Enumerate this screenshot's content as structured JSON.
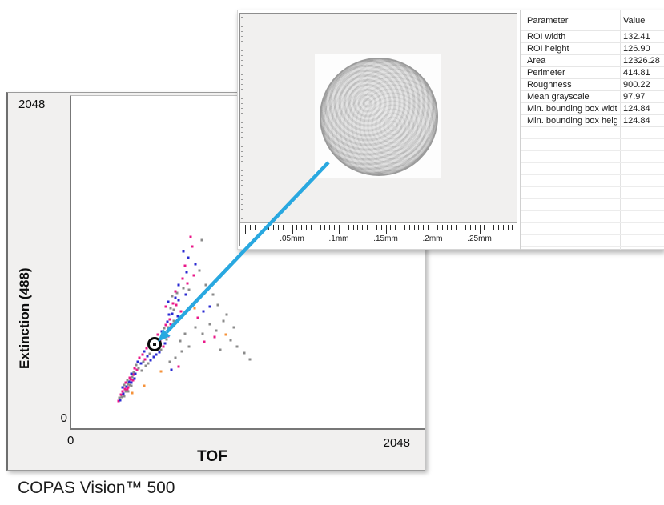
{
  "caption": "COPAS Vision™ 500",
  "colors": {
    "arrow": "#29a8e0",
    "panel_bg": "#f1f0ef",
    "selection_ring": "#0a0a0a",
    "point_pink": "#ea1889",
    "point_blue": "#2a2ad2",
    "point_gray": "#8b8b8b",
    "point_orange": "#f5923a"
  },
  "scatter": {
    "y_max_label": "2048",
    "y_min_label": "0",
    "x_min_label": "0",
    "x_max_label": "2048",
    "x_title": "TOF",
    "y_title": "Extinction (488)"
  },
  "image_viewer": {
    "ruler_labels": [
      ".05mm",
      ".1mm",
      ".15mm",
      ".2mm",
      ".25mm"
    ]
  },
  "table": {
    "headers": [
      "Parameter",
      "Value"
    ],
    "rows": [
      {
        "param": "ROI width",
        "value": "132.41"
      },
      {
        "param": "ROI height",
        "value": "126.90"
      },
      {
        "param": "Area",
        "value": "12326.28"
      },
      {
        "param": "Perimeter",
        "value": "414.81"
      },
      {
        "param": "Roughness",
        "value": "900.22"
      },
      {
        "param": "Mean grayscale",
        "value": "97.97"
      },
      {
        "param": "Min. bounding box width",
        "value": "124.84"
      },
      {
        "param": "Min. bounding box height",
        "value": "124.84"
      }
    ],
    "empty_row_count": 10
  },
  "chart_data": {
    "type": "scatter",
    "xlabel": "TOF",
    "ylabel": "Extinction (488)",
    "xlim": [
      0,
      2048
    ],
    "ylim": [
      0,
      2048
    ],
    "x_ticks": [
      0,
      2048
    ],
    "y_ticks": [
      0,
      2048
    ],
    "grid": false,
    "legend": false,
    "point_colors": [
      "#ea1889",
      "#2a2ad2",
      "#8b8b8b",
      "#f5923a"
    ],
    "selected_point": {
      "x": 497,
      "y": 518,
      "marker": "black-ring"
    },
    "points": [
      [
        272,
        168,
        0
      ],
      [
        278,
        188,
        2
      ],
      [
        284,
        175,
        1
      ],
      [
        289,
        205,
        0
      ],
      [
        294,
        190,
        2
      ],
      [
        299,
        228,
        0
      ],
      [
        303,
        210,
        1
      ],
      [
        308,
        195,
        2
      ],
      [
        312,
        242,
        0
      ],
      [
        316,
        225,
        2
      ],
      [
        320,
        258,
        1
      ],
      [
        324,
        238,
        0
      ],
      [
        328,
        272,
        2
      ],
      [
        332,
        252,
        0
      ],
      [
        336,
        288,
        1
      ],
      [
        340,
        265,
        2
      ],
      [
        344,
        302,
        0
      ],
      [
        348,
        280,
        1
      ],
      [
        352,
        318,
        2
      ],
      [
        356,
        295,
        0
      ],
      [
        347,
        335,
        1
      ],
      [
        337,
        312,
        0
      ],
      [
        327,
        298,
        2
      ],
      [
        317,
        282,
        0
      ],
      [
        307,
        268,
        2
      ],
      [
        297,
        252,
        1
      ],
      [
        330,
        225,
        2
      ],
      [
        350,
        260,
        2
      ],
      [
        360,
        330,
        0
      ],
      [
        365,
        308,
        1
      ],
      [
        362,
        345,
        2
      ],
      [
        367,
        368,
        0
      ],
      [
        372,
        335,
        1
      ],
      [
        377,
        392,
        2
      ],
      [
        382,
        358,
        0
      ],
      [
        387,
        412,
        1
      ],
      [
        392,
        372,
        2
      ],
      [
        397,
        432,
        0
      ],
      [
        402,
        398,
        1
      ],
      [
        407,
        355,
        2
      ],
      [
        412,
        452,
        0
      ],
      [
        417,
        408,
        2
      ],
      [
        422,
        472,
        1
      ],
      [
        427,
        425,
        0
      ],
      [
        432,
        385,
        2
      ],
      [
        437,
        492,
        0
      ],
      [
        442,
        442,
        1
      ],
      [
        447,
        402,
        2
      ],
      [
        452,
        512,
        0
      ],
      [
        457,
        458,
        2
      ],
      [
        462,
        418,
        1
      ],
      [
        467,
        532,
        0
      ],
      [
        472,
        482,
        2
      ],
      [
        477,
        438,
        1
      ],
      [
        482,
        552,
        0
      ],
      [
        487,
        498,
        2
      ],
      [
        492,
        452,
        1
      ],
      [
        502,
        575,
        0
      ],
      [
        507,
        518,
        2
      ],
      [
        512,
        468,
        1
      ],
      [
        517,
        545,
        0
      ],
      [
        522,
        485,
        2
      ],
      [
        527,
        595,
        1
      ],
      [
        532,
        505,
        0
      ],
      [
        537,
        615,
        2
      ],
      [
        542,
        525,
        1
      ],
      [
        547,
        635,
        0
      ],
      [
        552,
        548,
        2
      ],
      [
        557,
        655,
        1
      ],
      [
        562,
        568,
        0
      ],
      [
        566,
        702,
        1
      ],
      [
        572,
        672,
        0
      ],
      [
        578,
        742,
        2
      ],
      [
        584,
        708,
        1
      ],
      [
        590,
        772,
        0
      ],
      [
        596,
        732,
        2
      ],
      [
        602,
        802,
        1
      ],
      [
        608,
        762,
        0
      ],
      [
        614,
        832,
        2
      ],
      [
        620,
        792,
        1
      ],
      [
        562,
        622,
        2
      ],
      [
        576,
        642,
        0
      ],
      [
        594,
        662,
        2
      ],
      [
        616,
        692,
        1
      ],
      [
        634,
        722,
        0
      ],
      [
        652,
        862,
        2
      ],
      [
        662,
        822,
        1
      ],
      [
        672,
        892,
        0
      ],
      [
        682,
        852,
        2
      ],
      [
        644,
        922,
        0
      ],
      [
        624,
        882,
        1
      ],
      [
        604,
        842,
        0
      ],
      [
        584,
        812,
        2
      ],
      [
        564,
        782,
        1
      ],
      [
        548,
        752,
        0
      ],
      [
        658,
        1002,
        0
      ],
      [
        678,
        1052,
        1
      ],
      [
        700,
        1122,
        0
      ],
      [
        692,
        1180,
        0
      ],
      [
        756,
        1162,
        2
      ],
      [
        722,
        1012,
        1
      ],
      [
        742,
        972,
        2
      ],
      [
        712,
        942,
        0
      ],
      [
        668,
        962,
        1
      ],
      [
        648,
        1092,
        1
      ],
      [
        722,
        622,
        2
      ],
      [
        762,
        582,
        2
      ],
      [
        802,
        642,
        2
      ],
      [
        842,
        602,
        2
      ],
      [
        882,
        662,
        2
      ],
      [
        922,
        542,
        2
      ],
      [
        962,
        502,
        2
      ],
      [
        1002,
        462,
        2
      ],
      [
        1036,
        422,
        2
      ],
      [
        902,
        702,
        2
      ],
      [
        852,
        762,
        2
      ],
      [
        822,
        822,
        2
      ],
      [
        782,
        882,
        2
      ],
      [
        862,
        482,
        2
      ],
      [
        942,
        622,
        2
      ],
      [
        764,
        722,
        1
      ],
      [
        804,
        752,
        1
      ],
      [
        732,
        682,
        0
      ],
      [
        772,
        532,
        0
      ],
      [
        832,
        562,
        0
      ],
      [
        602,
        432,
        2
      ],
      [
        642,
        472,
        2
      ],
      [
        682,
        502,
        2
      ],
      [
        622,
        382,
        0
      ],
      [
        582,
        362,
        1
      ],
      [
        570,
        412,
        2
      ],
      [
        630,
        540,
        2
      ],
      [
        660,
        580,
        2
      ],
      [
        713,
        740,
        3
      ],
      [
        897,
        575,
        3
      ],
      [
        520,
        352,
        3
      ],
      [
        422,
        262,
        3
      ],
      [
        352,
        215,
        3
      ]
    ]
  }
}
